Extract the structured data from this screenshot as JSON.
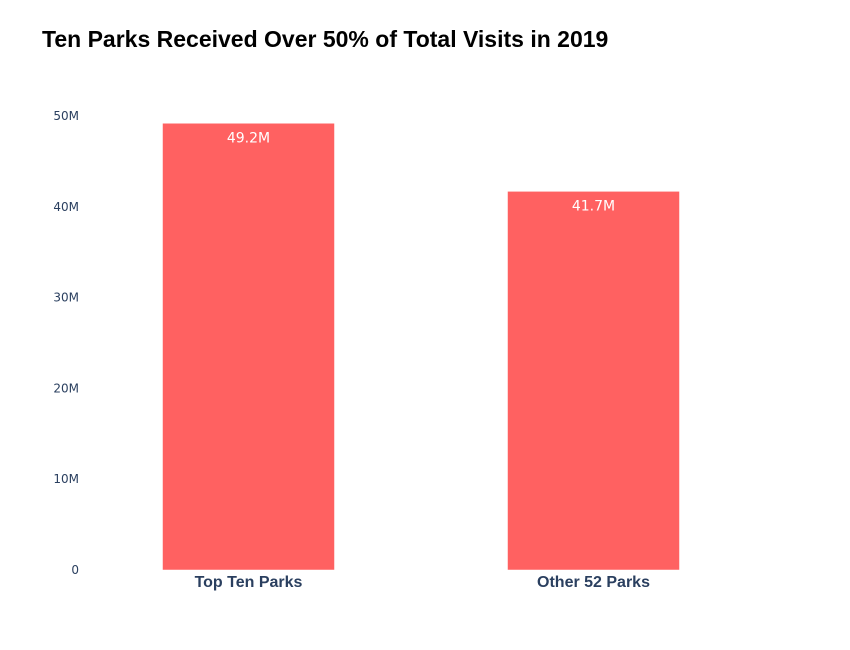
{
  "chart_data": {
    "type": "bar",
    "title": "Ten Parks Received Over 50% of Total Visits in 2019",
    "categories": [
      "Top Ten Parks",
      "Other 52 Parks"
    ],
    "values": [
      49.2,
      41.7
    ],
    "value_units": "millions of visits",
    "data_labels": [
      "49.2M",
      "41.7M"
    ],
    "xlabel": "",
    "ylabel": "",
    "ylim": [
      0,
      50
    ],
    "y_ticks": [
      {
        "value": 0,
        "label": "0"
      },
      {
        "value": 10,
        "label": "10M"
      },
      {
        "value": 20,
        "label": "20M"
      },
      {
        "value": 30,
        "label": "30M"
      },
      {
        "value": 40,
        "label": "40M"
      },
      {
        "value": 50,
        "label": "50M"
      }
    ],
    "grid": false,
    "legend": "none",
    "colors": {
      "bar": "#ff6161",
      "axis_text": "#2a3f5f",
      "title": "#000000"
    }
  }
}
